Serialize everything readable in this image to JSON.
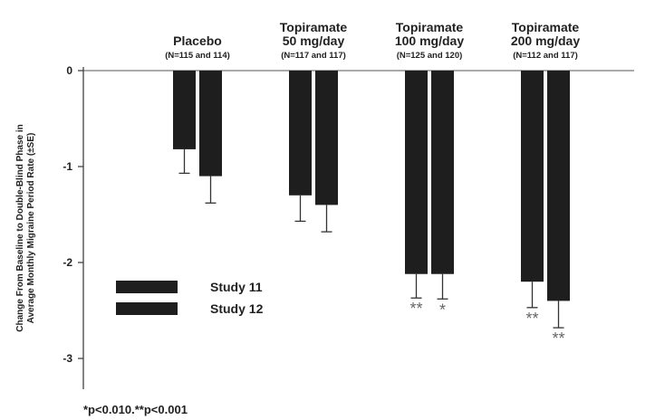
{
  "chart_data": {
    "type": "bar",
    "ylabel_lines": [
      "Change From Baseline to Double-Blind Phase in",
      "Average Monthly Migraine Period Rate (±SE)"
    ],
    "groups": [
      {
        "title": [
          "Placebo"
        ],
        "n": "(N=115 and 114)"
      },
      {
        "title": [
          "Topiramate",
          "50 mg/day"
        ],
        "n": "(N=117 and 117)"
      },
      {
        "title": [
          "Topiramate",
          "100 mg/day"
        ],
        "n": "(N=125 and 120)"
      },
      {
        "title": [
          "Topiramate",
          "200 mg/day"
        ],
        "n": "(N=112 and 117)"
      }
    ],
    "series": [
      {
        "name": "Study 11",
        "values": [
          -0.82,
          -1.3,
          -2.12,
          -2.2
        ],
        "se": [
          0.25,
          0.27,
          0.25,
          0.27
        ],
        "sig": [
          "",
          "",
          "**",
          "**"
        ]
      },
      {
        "name": "Study 12",
        "values": [
          -1.1,
          -1.4,
          -2.12,
          -2.4
        ],
        "se": [
          0.28,
          0.28,
          0.26,
          0.28
        ],
        "sig": [
          "",
          "",
          "*",
          "**"
        ]
      }
    ],
    "yticks": [
      0,
      -1,
      -2,
      -3
    ],
    "ylim": [
      -3.4,
      0
    ],
    "bar_color": "#1e1e1e",
    "sig_color": "#666666",
    "legend_position": "lower-left",
    "footnote": "*p<0.010.**p<0.001"
  }
}
